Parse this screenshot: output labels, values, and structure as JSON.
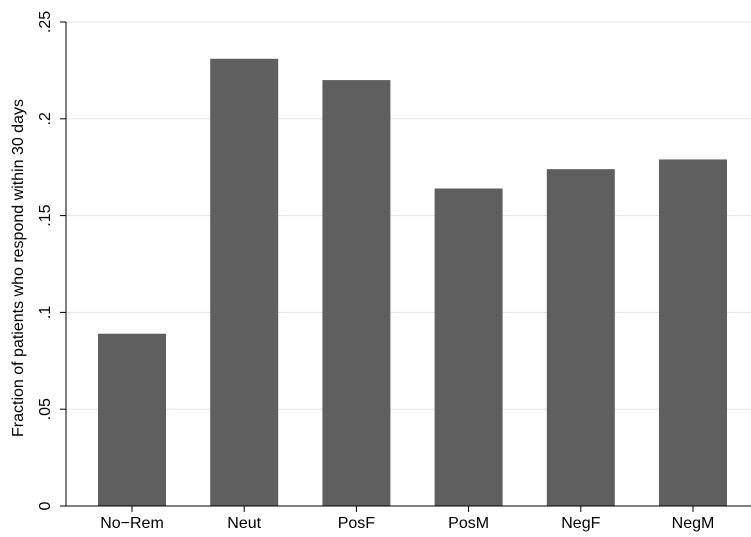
{
  "chart_data": {
    "type": "bar",
    "categories": [
      "No−Rem",
      "Neut",
      "PosF",
      "PosM",
      "NegF",
      "NegM"
    ],
    "values": [
      0.089,
      0.231,
      0.22,
      0.164,
      0.174,
      0.179
    ],
    "title": "",
    "xlabel": "",
    "ylabel": "Fraction of patients who respond within 30 days",
    "ylim": [
      0,
      0.25
    ],
    "yticks": [
      0,
      0.05,
      0.1,
      0.15,
      0.2,
      0.25
    ],
    "ytick_labels": [
      "0",
      ".05",
      ".1",
      ".15",
      ".2",
      ".25"
    ],
    "grid": true,
    "legend": "none",
    "bar_color": "#5f5f5f",
    "grid_color": "#dfe5e8",
    "axis_color": "#000000"
  }
}
